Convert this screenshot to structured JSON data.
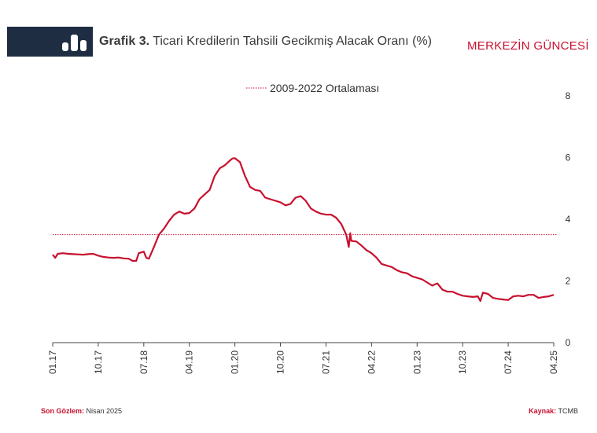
{
  "header": {
    "title_bold": "Grafik 3.",
    "title_rest": "Ticari Kredilerin Tahsili Gecikmiş Alacak Oranı (%)",
    "brand": "MERKEZİN GÜNCESİ",
    "icon": "bar-chart-icon"
  },
  "footer": {
    "left_key": "Son Gözlem:",
    "left_val": "Nisan 2025",
    "right_key": "Kaynak:",
    "right_val": "TCMB"
  },
  "colors": {
    "series": "#c8102e",
    "reference": "#c8102e",
    "header_box": "#1f2d43"
  },
  "chart_data": {
    "type": "line",
    "title": "Ticari Kredilerin Tahsili Gecikmiş Alacak Oranı (%)",
    "xlabel": "",
    "ylabel": "",
    "ylim": [
      0,
      8
    ],
    "y_ticks": [
      "0",
      "2",
      "4",
      "6",
      "8"
    ],
    "x_range": [
      0,
      99
    ],
    "x_ticks": [
      {
        "label": "01.17",
        "x": 0
      },
      {
        "label": "10.17",
        "x": 9
      },
      {
        "label": "07.18",
        "x": 18
      },
      {
        "label": "04.19",
        "x": 27
      },
      {
        "label": "01.20",
        "x": 36
      },
      {
        "label": "10.20",
        "x": 45
      },
      {
        "label": "07.21",
        "x": 54
      },
      {
        "label": "04.22",
        "x": 63
      },
      {
        "label": "01.23",
        "x": 72
      },
      {
        "label": "10.23",
        "x": 81
      },
      {
        "label": "07.24",
        "x": 90
      },
      {
        "label": "04.25",
        "x": 99
      }
    ],
    "legend": {
      "label": "2009-2022 Ortalaması",
      "position": "top-center"
    },
    "reference_line": {
      "name": "2009-2022 Ortalaması",
      "value": 3.5
    },
    "series": [
      {
        "name": "Tahsili Gecikmiş Alacak Oranı",
        "points": [
          [
            0,
            2.85
          ],
          [
            0.5,
            2.75
          ],
          [
            1,
            2.88
          ],
          [
            2,
            2.9
          ],
          [
            3,
            2.88
          ],
          [
            4,
            2.87
          ],
          [
            5,
            2.86
          ],
          [
            6,
            2.85
          ],
          [
            7,
            2.87
          ],
          [
            8,
            2.88
          ],
          [
            9,
            2.82
          ],
          [
            10,
            2.78
          ],
          [
            11,
            2.76
          ],
          [
            12,
            2.75
          ],
          [
            13,
            2.76
          ],
          [
            14,
            2.73
          ],
          [
            15,
            2.72
          ],
          [
            15.8,
            2.65
          ],
          [
            16.5,
            2.65
          ],
          [
            17,
            2.9
          ],
          [
            18,
            2.95
          ],
          [
            18.5,
            2.75
          ],
          [
            19,
            2.72
          ],
          [
            20,
            3.1
          ],
          [
            21,
            3.5
          ],
          [
            22,
            3.7
          ],
          [
            23,
            3.95
          ],
          [
            24,
            4.15
          ],
          [
            25,
            4.25
          ],
          [
            26,
            4.18
          ],
          [
            27,
            4.2
          ],
          [
            28,
            4.35
          ],
          [
            29,
            4.65
          ],
          [
            30,
            4.8
          ],
          [
            31,
            4.95
          ],
          [
            32,
            5.4
          ],
          [
            33,
            5.65
          ],
          [
            34,
            5.75
          ],
          [
            35,
            5.9
          ],
          [
            35.5,
            5.97
          ],
          [
            36,
            5.98
          ],
          [
            37,
            5.85
          ],
          [
            38,
            5.4
          ],
          [
            39,
            5.05
          ],
          [
            40,
            4.95
          ],
          [
            41,
            4.92
          ],
          [
            42,
            4.7
          ],
          [
            43,
            4.65
          ],
          [
            44,
            4.6
          ],
          [
            45,
            4.55
          ],
          [
            46,
            4.45
          ],
          [
            47,
            4.5
          ],
          [
            48,
            4.7
          ],
          [
            49,
            4.75
          ],
          [
            50,
            4.6
          ],
          [
            51,
            4.35
          ],
          [
            52,
            4.25
          ],
          [
            53,
            4.18
          ],
          [
            54,
            4.15
          ],
          [
            55,
            4.15
          ],
          [
            56,
            4.05
          ],
          [
            57,
            3.85
          ],
          [
            58,
            3.5
          ],
          [
            58.5,
            3.1
          ],
          [
            58.8,
            3.55
          ],
          [
            59,
            3.3
          ],
          [
            60,
            3.28
          ],
          [
            61,
            3.15
          ],
          [
            62,
            3.0
          ],
          [
            63,
            2.9
          ],
          [
            64,
            2.75
          ],
          [
            65,
            2.55
          ],
          [
            66,
            2.5
          ],
          [
            67,
            2.45
          ],
          [
            68,
            2.35
          ],
          [
            69,
            2.28
          ],
          [
            70,
            2.25
          ],
          [
            71,
            2.15
          ],
          [
            72,
            2.1
          ],
          [
            73,
            2.05
          ],
          [
            74,
            1.95
          ],
          [
            75,
            1.85
          ],
          [
            76,
            1.92
          ],
          [
            77,
            1.72
          ],
          [
            78,
            1.65
          ],
          [
            79,
            1.65
          ],
          [
            80,
            1.58
          ],
          [
            81,
            1.52
          ],
          [
            82,
            1.5
          ],
          [
            83,
            1.48
          ],
          [
            84,
            1.5
          ],
          [
            84.5,
            1.35
          ],
          [
            85,
            1.62
          ],
          [
            86,
            1.58
          ],
          [
            87,
            1.45
          ],
          [
            88,
            1.42
          ],
          [
            89,
            1.4
          ],
          [
            90,
            1.38
          ],
          [
            91,
            1.5
          ],
          [
            92,
            1.52
          ],
          [
            93,
            1.5
          ],
          [
            94,
            1.55
          ],
          [
            95,
            1.55
          ],
          [
            96,
            1.45
          ],
          [
            97,
            1.48
          ],
          [
            98,
            1.5
          ],
          [
            99,
            1.55
          ]
        ]
      }
    ]
  }
}
